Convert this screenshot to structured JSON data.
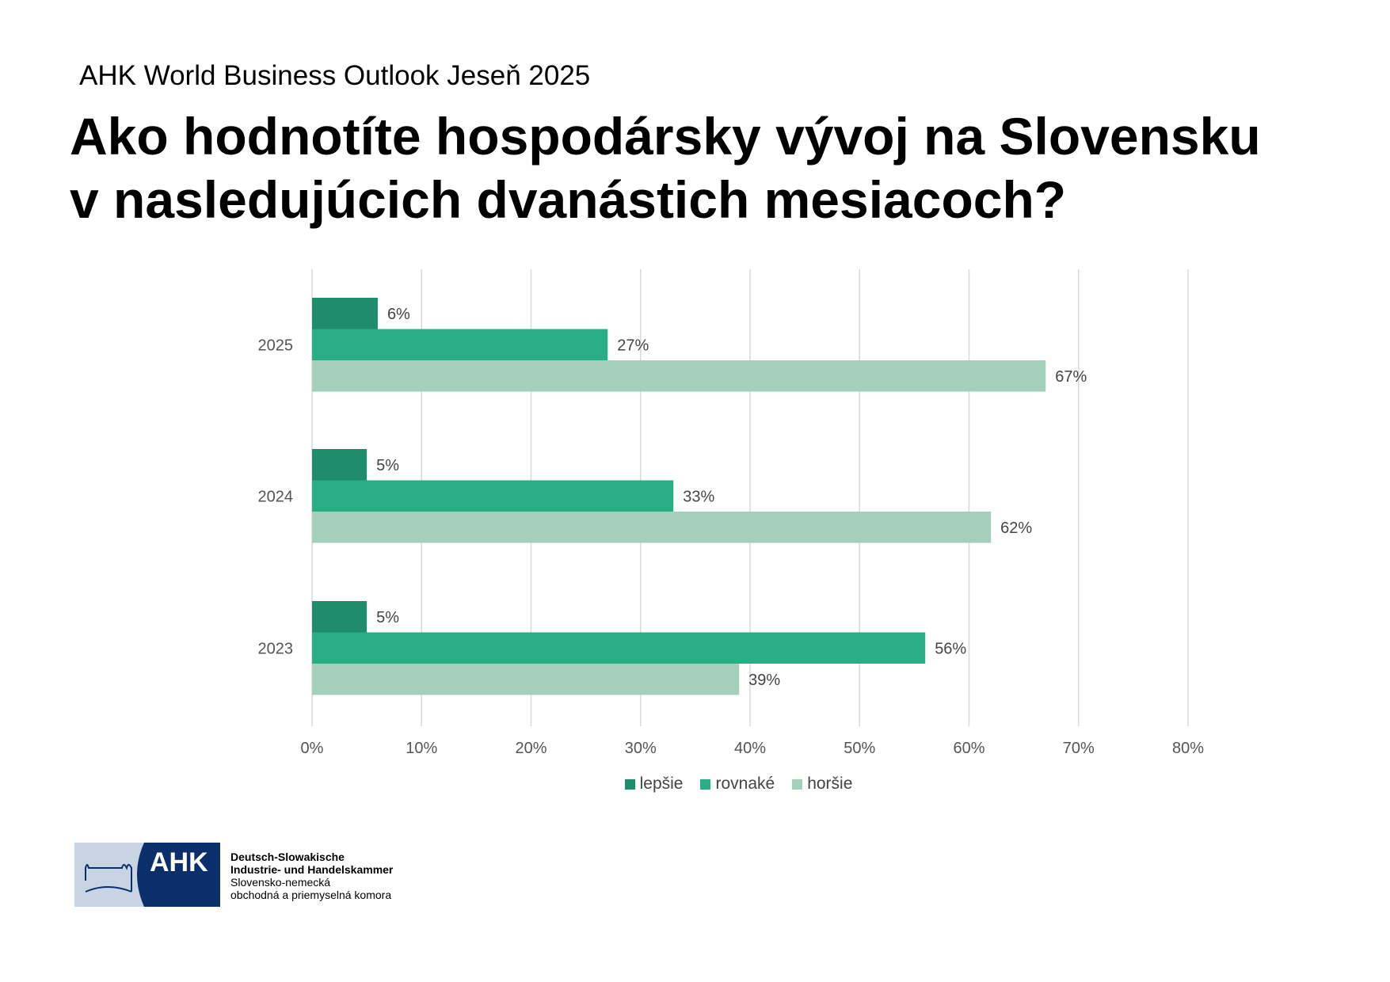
{
  "header": {
    "subtitle": "AHK World Business Outlook Jeseň 2025",
    "title_line1": "Ako hodnotíte hospodársky vývoj na Slovensku",
    "title_line2": "v nasledujúcich dvanástich mesiacoch?"
  },
  "chart_data": {
    "type": "bar",
    "orientation": "horizontal",
    "categories": [
      "2025",
      "2024",
      "2023"
    ],
    "series": [
      {
        "name": "lepšie",
        "color": "#1f8c6c",
        "values": [
          6,
          5,
          5
        ],
        "labels": [
          "6%",
          "5%",
          "5%"
        ]
      },
      {
        "name": "rovnaké",
        "color": "#29ad84",
        "values": [
          27,
          33,
          56
        ],
        "labels": [
          "27%",
          "33%",
          "56%"
        ]
      },
      {
        "name": "horšie",
        "color": "#a3cfbb",
        "values": [
          67,
          62,
          39
        ],
        "labels": [
          "67%",
          "62%",
          "39%"
        ]
      }
    ],
    "xlim": [
      0,
      80
    ],
    "xticks": [
      0,
      10,
      20,
      30,
      40,
      50,
      60,
      70,
      80
    ],
    "xtick_labels": [
      "0%",
      "10%",
      "20%",
      "30%",
      "40%",
      "50%",
      "60%",
      "70%",
      "80%"
    ],
    "grid": "vertical",
    "legend_placement": "bottom"
  },
  "logo": {
    "mark": "AHK",
    "line1": "Deutsch-Slowakische",
    "line2": "Industrie- und Handelskammer",
    "line3": "Slovensko-nemecká",
    "line4": "obchodná a priemyselná komora",
    "colors": {
      "navy": "#0b2f6b",
      "light": "#c8d3e3"
    }
  }
}
